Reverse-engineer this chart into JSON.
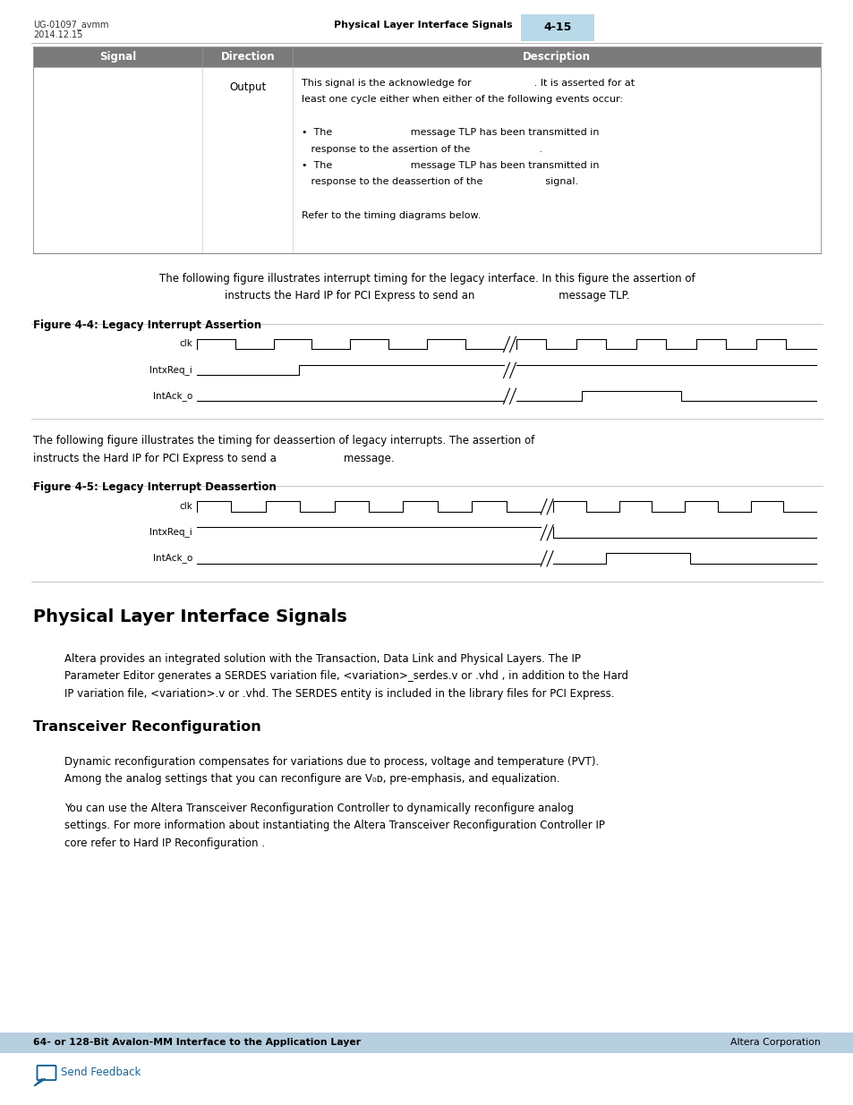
{
  "page_width": 9.54,
  "page_height": 12.35,
  "dpi": 100,
  "bg_color": "#ffffff",
  "header_left_line1": "UG-01097_avmm",
  "header_left_line2": "2014.12.15",
  "header_center": "Physical Layer Interface Signals",
  "header_right": "4-15",
  "header_right_bg": "#b8d9e8",
  "table_header_bg": "#7a7a7a",
  "table_col1": "Signal",
  "table_col2": "Direction",
  "table_col3": "Description",
  "direction_text": "Output",
  "desc_lines": [
    "This signal is the acknowledge for                    . It is asserted for at",
    "least one cycle either when either of the following events occur:",
    "",
    "•  The                         message TLP has been transmitted in",
    "   response to the assertion of the                      .",
    "•  The                         message TLP has been transmitted in",
    "   response to the deassertion of the                    signal.",
    "",
    "Refer to the timing diagrams below."
  ],
  "para1_line1": "The following figure illustrates interrupt timing for the legacy interface. In this figure the assertion of",
  "para1_line2": "instructs the Hard IP for PCI Express to send an                         message TLP.",
  "fig1_label": "Figure 4-4: Legacy Interrupt Assertion",
  "fig2_label": "Figure 4-5: Legacy Interrupt Deassertion",
  "para2_line1": "The following figure illustrates the timing for deassertion of legacy interrupts. The assertion of",
  "para2_line2": "instructs the Hard IP for PCI Express to send a                    message.",
  "section_title": "Physical Layer Interface Signals",
  "section_para1": [
    "Altera provides an integrated solution with the Transaction, Data Link and Physical Layers. The IP",
    "Parameter Editor generates a SERDES variation file, <variation>_serdes.v or .vhd , in addition to the Hard",
    "IP variation file, <variation>.v or .vhd. The SERDES entity is included in the library files for PCI Express."
  ],
  "subsection_title": "Transceiver Reconfiguration",
  "sub_para1": [
    "Dynamic reconfiguration compensates for variations due to process, voltage and temperature (PVT).",
    "Among the analog settings that you can reconfigure are V₀ᴅ, pre-emphasis, and equalization."
  ],
  "sub_para2": [
    "You can use the Altera Transceiver Reconfiguration Controller to dynamically reconfigure analog",
    "settings. For more information about instantiating the Altera Transceiver Reconfiguration Controller IP",
    "core refer to Hard IP Reconfiguration ."
  ],
  "footer_bg": "#b8cfe0",
  "footer_text": "64- or 128-Bit Avalon-MM Interface to the Application Layer",
  "footer_right": "Altera Corporation",
  "footer_link": "Send Feedback",
  "blue_color": "#1a6496",
  "text_color": "#000000",
  "gray_line": "#bbbbbb",
  "table_border": "#999999"
}
